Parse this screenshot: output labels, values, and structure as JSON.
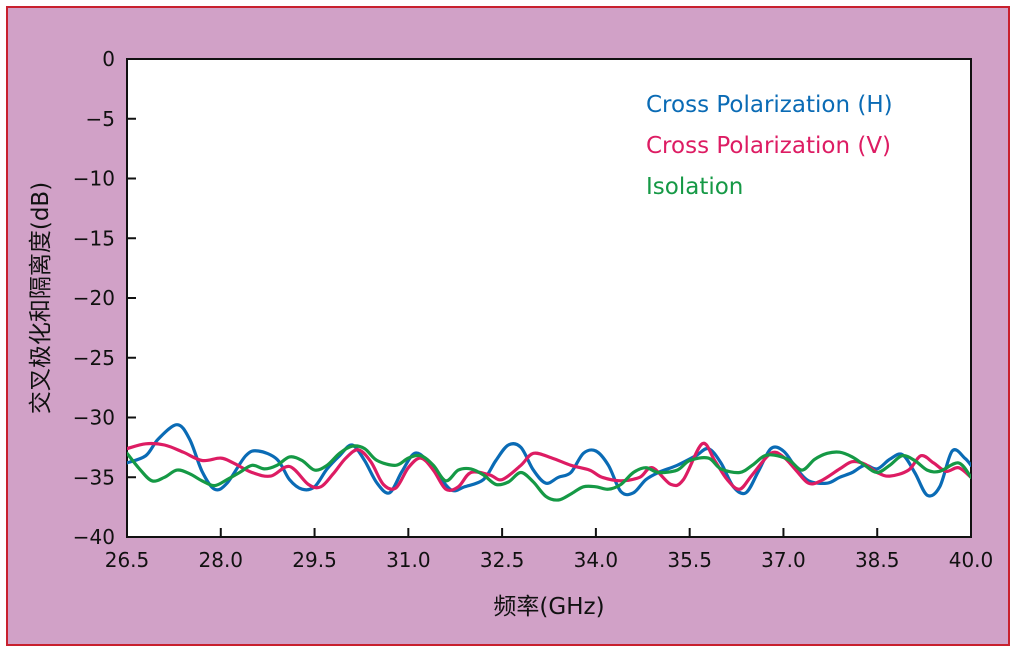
{
  "chart_data": {
    "type": "line",
    "xlabel": "频率(GHz)",
    "ylabel": "交叉极化和隔离度(dB)",
    "xlim": [
      26.5,
      40.0
    ],
    "ylim": [
      -40,
      0
    ],
    "xticks": [
      "26.5",
      "28.0",
      "29.5",
      "31.0",
      "32.5",
      "34.0",
      "35.5",
      "37.0",
      "38.5",
      "40.0"
    ],
    "yticks": [
      "0",
      "−5",
      "−10",
      "−15",
      "−20",
      "−25",
      "−30",
      "−35",
      "−40"
    ],
    "legend_position": "top-right",
    "grid": false,
    "series": [
      {
        "name": "Cross Polarization (H)",
        "color": "#0a6bb5",
        "points": [
          [
            26.5,
            -33.8
          ],
          [
            26.8,
            -33.2
          ],
          [
            27.0,
            -31.8
          ],
          [
            27.3,
            -30.6
          ],
          [
            27.5,
            -31.8
          ],
          [
            27.7,
            -34.5
          ],
          [
            27.9,
            -36.0
          ],
          [
            28.1,
            -35.5
          ],
          [
            28.4,
            -33.2
          ],
          [
            28.6,
            -32.8
          ],
          [
            28.9,
            -33.5
          ],
          [
            29.1,
            -35.2
          ],
          [
            29.3,
            -36.0
          ],
          [
            29.5,
            -35.8
          ],
          [
            29.7,
            -34.3
          ],
          [
            29.9,
            -33.2
          ],
          [
            30.1,
            -32.3
          ],
          [
            30.3,
            -33.6
          ],
          [
            30.5,
            -35.5
          ],
          [
            30.7,
            -36.3
          ],
          [
            30.9,
            -34.5
          ],
          [
            31.1,
            -33.0
          ],
          [
            31.3,
            -33.6
          ],
          [
            31.5,
            -35.0
          ],
          [
            31.7,
            -36.1
          ],
          [
            31.9,
            -35.8
          ],
          [
            32.2,
            -35.2
          ],
          [
            32.4,
            -33.6
          ],
          [
            32.6,
            -32.3
          ],
          [
            32.8,
            -32.5
          ],
          [
            33.0,
            -34.4
          ],
          [
            33.2,
            -35.5
          ],
          [
            33.4,
            -35.0
          ],
          [
            33.6,
            -34.6
          ],
          [
            33.8,
            -33.0
          ],
          [
            34.0,
            -32.8
          ],
          [
            34.2,
            -34.0
          ],
          [
            34.4,
            -36.2
          ],
          [
            34.6,
            -36.3
          ],
          [
            34.8,
            -35.2
          ],
          [
            35.0,
            -34.6
          ],
          [
            35.3,
            -34.0
          ],
          [
            35.6,
            -33.2
          ],
          [
            35.8,
            -32.6
          ],
          [
            36.0,
            -33.8
          ],
          [
            36.2,
            -35.8
          ],
          [
            36.4,
            -36.3
          ],
          [
            36.6,
            -34.5
          ],
          [
            36.8,
            -32.6
          ],
          [
            37.0,
            -32.8
          ],
          [
            37.2,
            -34.2
          ],
          [
            37.4,
            -35.3
          ],
          [
            37.7,
            -35.5
          ],
          [
            37.9,
            -35.0
          ],
          [
            38.1,
            -34.6
          ],
          [
            38.3,
            -34.0
          ],
          [
            38.5,
            -34.3
          ],
          [
            38.7,
            -33.5
          ],
          [
            38.9,
            -33.1
          ],
          [
            39.1,
            -34.6
          ],
          [
            39.3,
            -36.5
          ],
          [
            39.5,
            -35.8
          ],
          [
            39.7,
            -32.8
          ],
          [
            39.9,
            -33.4
          ],
          [
            40.0,
            -34.0
          ]
        ]
      },
      {
        "name": "Cross Polarization (V)",
        "color": "#dd1c63",
        "points": [
          [
            26.5,
            -32.6
          ],
          [
            26.8,
            -32.2
          ],
          [
            27.1,
            -32.3
          ],
          [
            27.4,
            -32.9
          ],
          [
            27.7,
            -33.6
          ],
          [
            28.0,
            -33.4
          ],
          [
            28.2,
            -33.8
          ],
          [
            28.5,
            -34.6
          ],
          [
            28.8,
            -34.9
          ],
          [
            29.1,
            -34.1
          ],
          [
            29.4,
            -35.6
          ],
          [
            29.6,
            -35.8
          ],
          [
            29.8,
            -34.7
          ],
          [
            30.0,
            -33.4
          ],
          [
            30.2,
            -32.7
          ],
          [
            30.4,
            -33.7
          ],
          [
            30.6,
            -35.6
          ],
          [
            30.8,
            -35.9
          ],
          [
            31.0,
            -34.2
          ],
          [
            31.2,
            -33.4
          ],
          [
            31.4,
            -34.4
          ],
          [
            31.6,
            -36.0
          ],
          [
            31.8,
            -35.8
          ],
          [
            32.0,
            -34.6
          ],
          [
            32.3,
            -34.8
          ],
          [
            32.5,
            -35.2
          ],
          [
            32.8,
            -34.0
          ],
          [
            33.0,
            -33.0
          ],
          [
            33.3,
            -33.4
          ],
          [
            33.6,
            -34.0
          ],
          [
            33.9,
            -34.4
          ],
          [
            34.1,
            -35.0
          ],
          [
            34.4,
            -35.3
          ],
          [
            34.7,
            -35.0
          ],
          [
            34.9,
            -34.2
          ],
          [
            35.2,
            -35.6
          ],
          [
            35.4,
            -35.2
          ],
          [
            35.7,
            -32.2
          ],
          [
            35.9,
            -33.6
          ],
          [
            36.1,
            -35.2
          ],
          [
            36.3,
            -36.0
          ],
          [
            36.5,
            -34.8
          ],
          [
            36.8,
            -33.0
          ],
          [
            37.0,
            -33.3
          ],
          [
            37.2,
            -34.4
          ],
          [
            37.4,
            -35.5
          ],
          [
            37.6,
            -35.3
          ],
          [
            37.9,
            -34.3
          ],
          [
            38.1,
            -33.7
          ],
          [
            38.3,
            -33.9
          ],
          [
            38.5,
            -34.6
          ],
          [
            38.7,
            -34.9
          ],
          [
            39.0,
            -34.4
          ],
          [
            39.2,
            -33.2
          ],
          [
            39.4,
            -33.8
          ],
          [
            39.6,
            -34.5
          ],
          [
            39.8,
            -34.2
          ],
          [
            40.0,
            -35.0
          ]
        ]
      },
      {
        "name": "Isolation",
        "color": "#159945",
        "points": [
          [
            26.5,
            -33.0
          ],
          [
            26.7,
            -34.3
          ],
          [
            26.9,
            -35.3
          ],
          [
            27.1,
            -35.0
          ],
          [
            27.3,
            -34.4
          ],
          [
            27.5,
            -34.7
          ],
          [
            27.7,
            -35.3
          ],
          [
            27.9,
            -35.7
          ],
          [
            28.1,
            -35.2
          ],
          [
            28.3,
            -34.6
          ],
          [
            28.5,
            -34.0
          ],
          [
            28.7,
            -34.3
          ],
          [
            28.9,
            -34.0
          ],
          [
            29.1,
            -33.3
          ],
          [
            29.3,
            -33.6
          ],
          [
            29.5,
            -34.4
          ],
          [
            29.7,
            -34.0
          ],
          [
            29.9,
            -33.0
          ],
          [
            30.1,
            -32.4
          ],
          [
            30.3,
            -32.6
          ],
          [
            30.5,
            -33.6
          ],
          [
            30.8,
            -34.0
          ],
          [
            31.0,
            -33.4
          ],
          [
            31.2,
            -33.2
          ],
          [
            31.4,
            -34.0
          ],
          [
            31.6,
            -35.3
          ],
          [
            31.8,
            -34.4
          ],
          [
            32.0,
            -34.3
          ],
          [
            32.2,
            -34.8
          ],
          [
            32.4,
            -35.6
          ],
          [
            32.6,
            -35.4
          ],
          [
            32.8,
            -34.6
          ],
          [
            33.0,
            -35.4
          ],
          [
            33.2,
            -36.6
          ],
          [
            33.4,
            -36.9
          ],
          [
            33.6,
            -36.4
          ],
          [
            33.8,
            -35.8
          ],
          [
            34.0,
            -35.8
          ],
          [
            34.2,
            -36.0
          ],
          [
            34.4,
            -35.6
          ],
          [
            34.6,
            -34.6
          ],
          [
            34.8,
            -34.2
          ],
          [
            35.0,
            -34.6
          ],
          [
            35.3,
            -34.4
          ],
          [
            35.5,
            -33.6
          ],
          [
            35.8,
            -33.4
          ],
          [
            36.0,
            -34.3
          ],
          [
            36.3,
            -34.6
          ],
          [
            36.5,
            -34.0
          ],
          [
            36.7,
            -33.2
          ],
          [
            36.9,
            -33.2
          ],
          [
            37.1,
            -33.6
          ],
          [
            37.3,
            -34.4
          ],
          [
            37.5,
            -33.5
          ],
          [
            37.7,
            -33.0
          ],
          [
            37.9,
            -32.9
          ],
          [
            38.1,
            -33.3
          ],
          [
            38.3,
            -34.0
          ],
          [
            38.5,
            -34.6
          ],
          [
            38.7,
            -34.0
          ],
          [
            38.9,
            -33.2
          ],
          [
            39.1,
            -33.6
          ],
          [
            39.3,
            -34.4
          ],
          [
            39.5,
            -34.5
          ],
          [
            39.8,
            -33.8
          ],
          [
            40.0,
            -35.0
          ]
        ]
      }
    ]
  }
}
